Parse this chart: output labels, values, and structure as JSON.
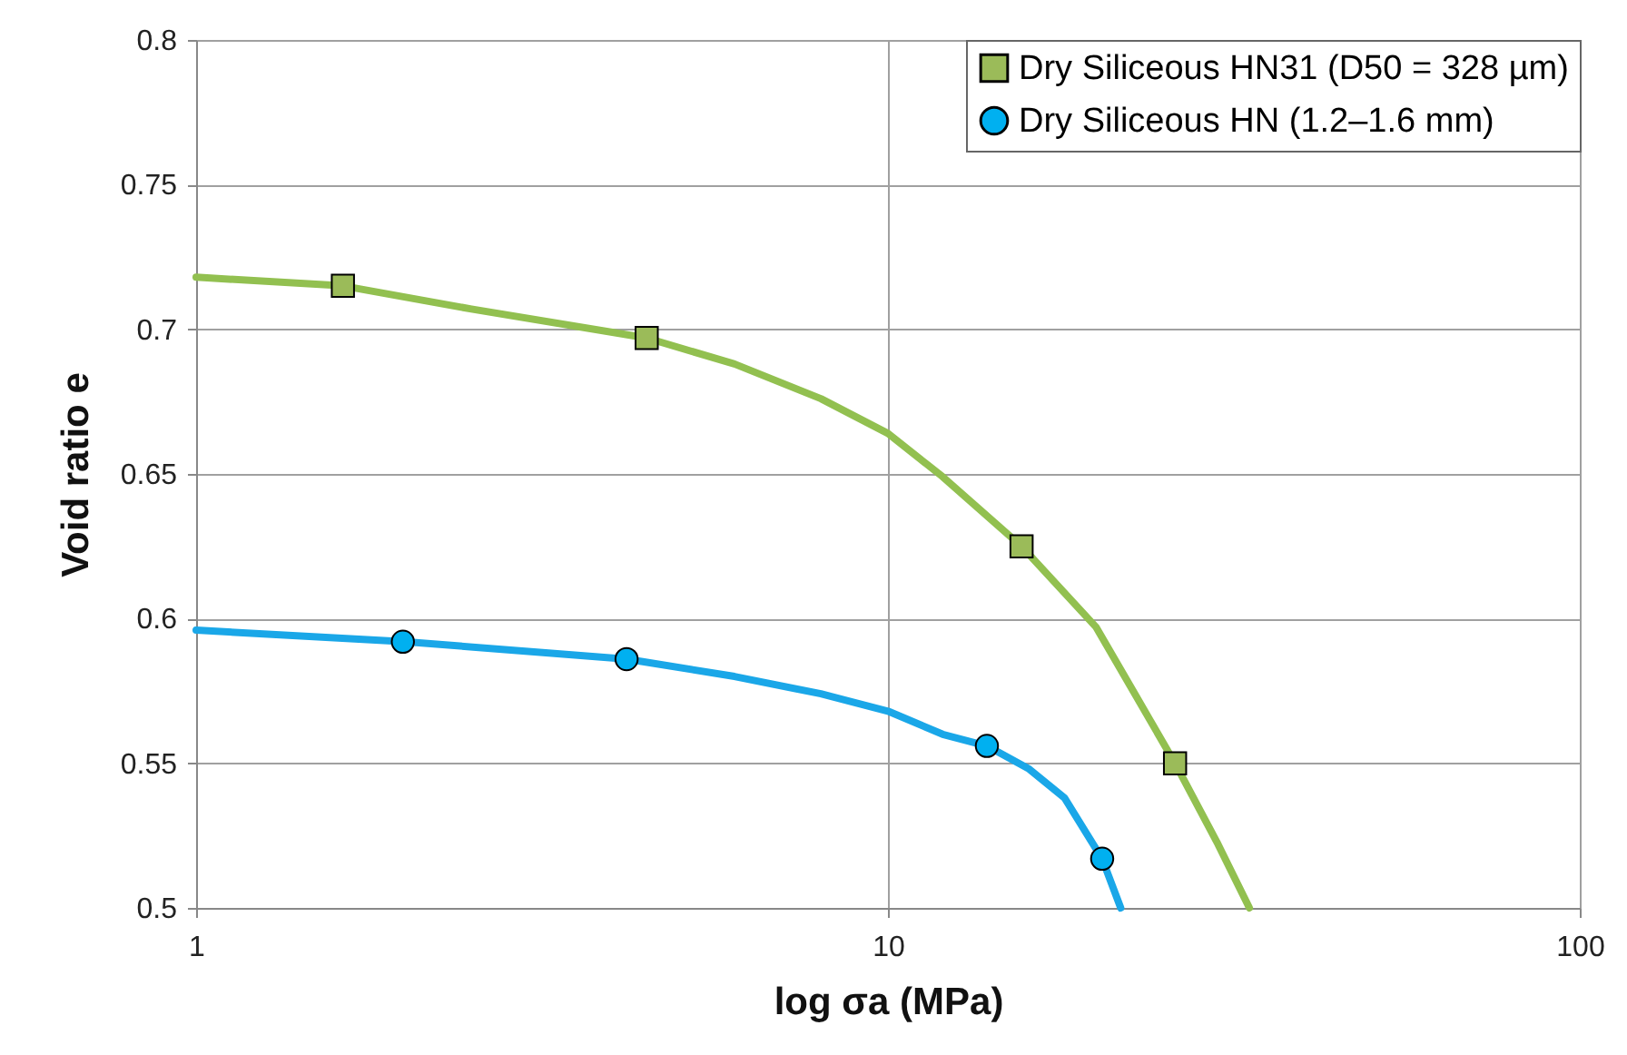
{
  "chart_data": {
    "type": "line",
    "xlabel": "log σa (MPa)",
    "ylabel": "Void ratio e",
    "log": "x",
    "xlim": [
      1,
      100
    ],
    "xticks": [
      1,
      10,
      100
    ],
    "ylim": [
      0.5,
      0.8
    ],
    "yticks": [
      0.5,
      0.55,
      0.6,
      0.65,
      0.7,
      0.75,
      0.8
    ],
    "grid": true,
    "legend": "top right",
    "series": [
      {
        "color": "#92c050",
        "x": [
          1,
          1.63,
          2.5,
          4.48,
          6,
          8,
          10,
          12,
          15.6,
          20,
          26,
          30,
          33.3
        ],
        "values": [
          0.718,
          0.715,
          0.707,
          0.697,
          0.688,
          0.676,
          0.664,
          0.649,
          0.625,
          0.597,
          0.55,
          0.522,
          0.5
        ]
      },
      {
        "color": "#1aa7e8",
        "x": [
          1,
          2,
          4.2,
          6,
          8,
          10,
          12,
          13.9,
          16,
          18,
          20.4,
          21.7
        ],
        "values": [
          0.596,
          0.592,
          0.586,
          0.58,
          0.574,
          0.568,
          0.56,
          0.556,
          0.548,
          0.538,
          0.517,
          0.5
        ]
      },
      {
        "type": "scatter",
        "name": "Dry Siliceous HN31 (D50 = 328 µm)",
        "color": "#9bbb59",
        "marker": "square",
        "x": [
          1.63,
          4.48,
          15.6,
          26
        ],
        "values": [
          0.715,
          0.697,
          0.625,
          0.55
        ]
      },
      {
        "type": "scatter",
        "name": "Dry Siliceous HN (1.2–1.6 mm)",
        "color": "#00b0f0",
        "marker": "circle",
        "x": [
          1.99,
          4.19,
          13.9,
          20.4
        ],
        "values": [
          0.592,
          0.586,
          0.556,
          0.517
        ]
      }
    ]
  }
}
